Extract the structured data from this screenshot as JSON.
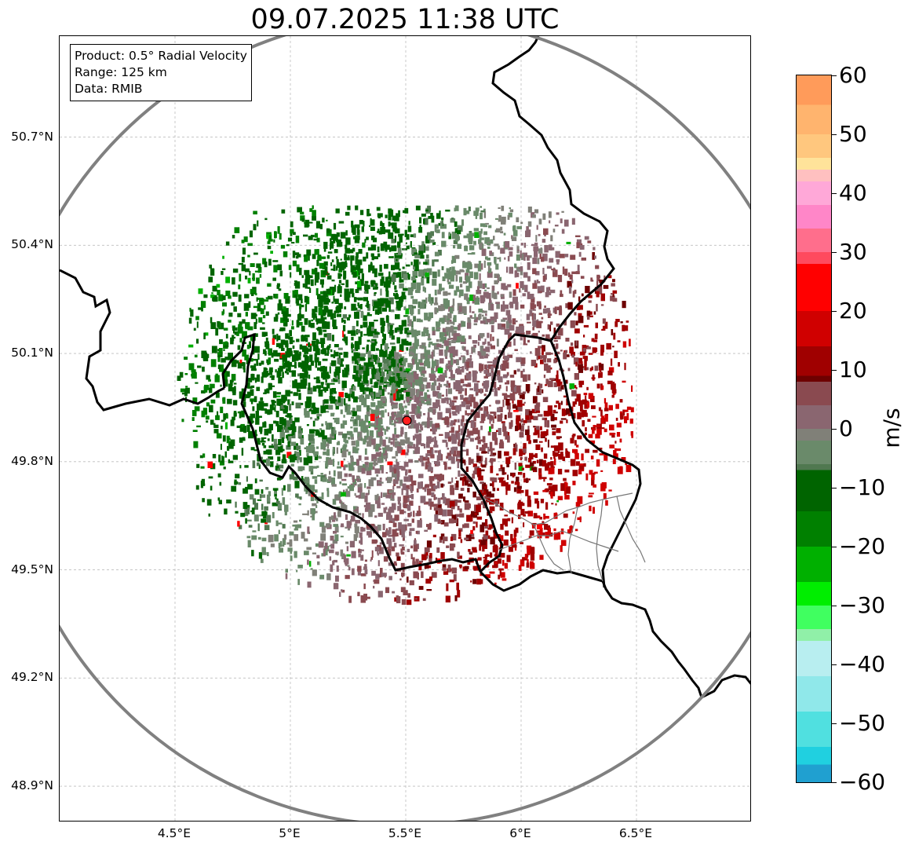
{
  "title": "09.07.2025 11:38 UTC",
  "info_box": {
    "product": "Product: 0.5° Radial Velocity",
    "range": "Range: 125 km",
    "data": "Data: RMIB"
  },
  "map": {
    "lon_range": [
      4.0,
      7.0
    ],
    "lat_range": [
      48.8,
      50.98
    ],
    "radar_site": {
      "lon": 5.505,
      "lat": 49.914,
      "color": "#ff1f1f"
    },
    "range_ring_color": "#808080",
    "border_color": "#000000",
    "lat_ticks": [
      {
        "value": 50.7,
        "label": "50.7°N"
      },
      {
        "value": 50.4,
        "label": "50.4°N"
      },
      {
        "value": 50.1,
        "label": "50.1°N"
      },
      {
        "value": 49.8,
        "label": "49.8°N"
      },
      {
        "value": 49.5,
        "label": "49.5°N"
      },
      {
        "value": 49.2,
        "label": "49.2°N"
      },
      {
        "value": 48.9,
        "label": "48.9°N"
      }
    ],
    "lon_ticks": [
      {
        "value": 4.5,
        "label": "4.5°E"
      },
      {
        "value": 5.0,
        "label": "5°E"
      },
      {
        "value": 5.5,
        "label": "5.5°E"
      },
      {
        "value": 6.0,
        "label": "6°E"
      },
      {
        "value": 6.5,
        "label": "6.5°E"
      }
    ]
  },
  "colorbar": {
    "unit": "m/s",
    "range": [
      -60,
      60
    ],
    "ticks": [
      {
        "value": 60,
        "label": "60"
      },
      {
        "value": 50,
        "label": "50"
      },
      {
        "value": 40,
        "label": "40"
      },
      {
        "value": 30,
        "label": "30"
      },
      {
        "value": 20,
        "label": "20"
      },
      {
        "value": 10,
        "label": "10"
      },
      {
        "value": 0,
        "label": "0"
      },
      {
        "value": -10,
        "label": "−10"
      },
      {
        "value": -20,
        "label": "−20"
      },
      {
        "value": -30,
        "label": "−30"
      },
      {
        "value": -40,
        "label": "−40"
      },
      {
        "value": -50,
        "label": "−50"
      },
      {
        "value": -60,
        "label": "−60"
      }
    ],
    "stops": [
      {
        "value": 60,
        "color": "#ff9b5a"
      },
      {
        "value": 55,
        "color": "#ffb46e"
      },
      {
        "value": 50,
        "color": "#ffc77e"
      },
      {
        "value": 46,
        "color": "#ffe39a"
      },
      {
        "value": 44,
        "color": "#ffc0c0"
      },
      {
        "value": 42,
        "color": "#ffa8d8"
      },
      {
        "value": 38,
        "color": "#ff86c8"
      },
      {
        "value": 34,
        "color": "#ff6e8c"
      },
      {
        "value": 30,
        "color": "#ff4a5e"
      },
      {
        "value": 28,
        "color": "#ff0000"
      },
      {
        "value": 20,
        "color": "#d00000"
      },
      {
        "value": 14,
        "color": "#a00000"
      },
      {
        "value": 9,
        "color": "#6e0000"
      },
      {
        "value": 8,
        "color": "#8a4a50"
      },
      {
        "value": 4,
        "color": "#8a6670"
      },
      {
        "value": 0,
        "color": "#808078"
      },
      {
        "value": -2,
        "color": "#6a8a6a"
      },
      {
        "value": -6,
        "color": "#507850"
      },
      {
        "value": -7,
        "color": "#006400"
      },
      {
        "value": -14,
        "color": "#008000"
      },
      {
        "value": -20,
        "color": "#00b000"
      },
      {
        "value": -26,
        "color": "#00ee00"
      },
      {
        "value": -30,
        "color": "#40ff60"
      },
      {
        "value": -34,
        "color": "#90f0a8"
      },
      {
        "value": -36,
        "color": "#b8eef0"
      },
      {
        "value": -42,
        "color": "#90e8ea"
      },
      {
        "value": -48,
        "color": "#50e0e0"
      },
      {
        "value": -54,
        "color": "#20d0e0"
      },
      {
        "value": -57,
        "color": "#20a0d0"
      },
      {
        "value": -60,
        "color": "#1e78c8"
      }
    ]
  }
}
